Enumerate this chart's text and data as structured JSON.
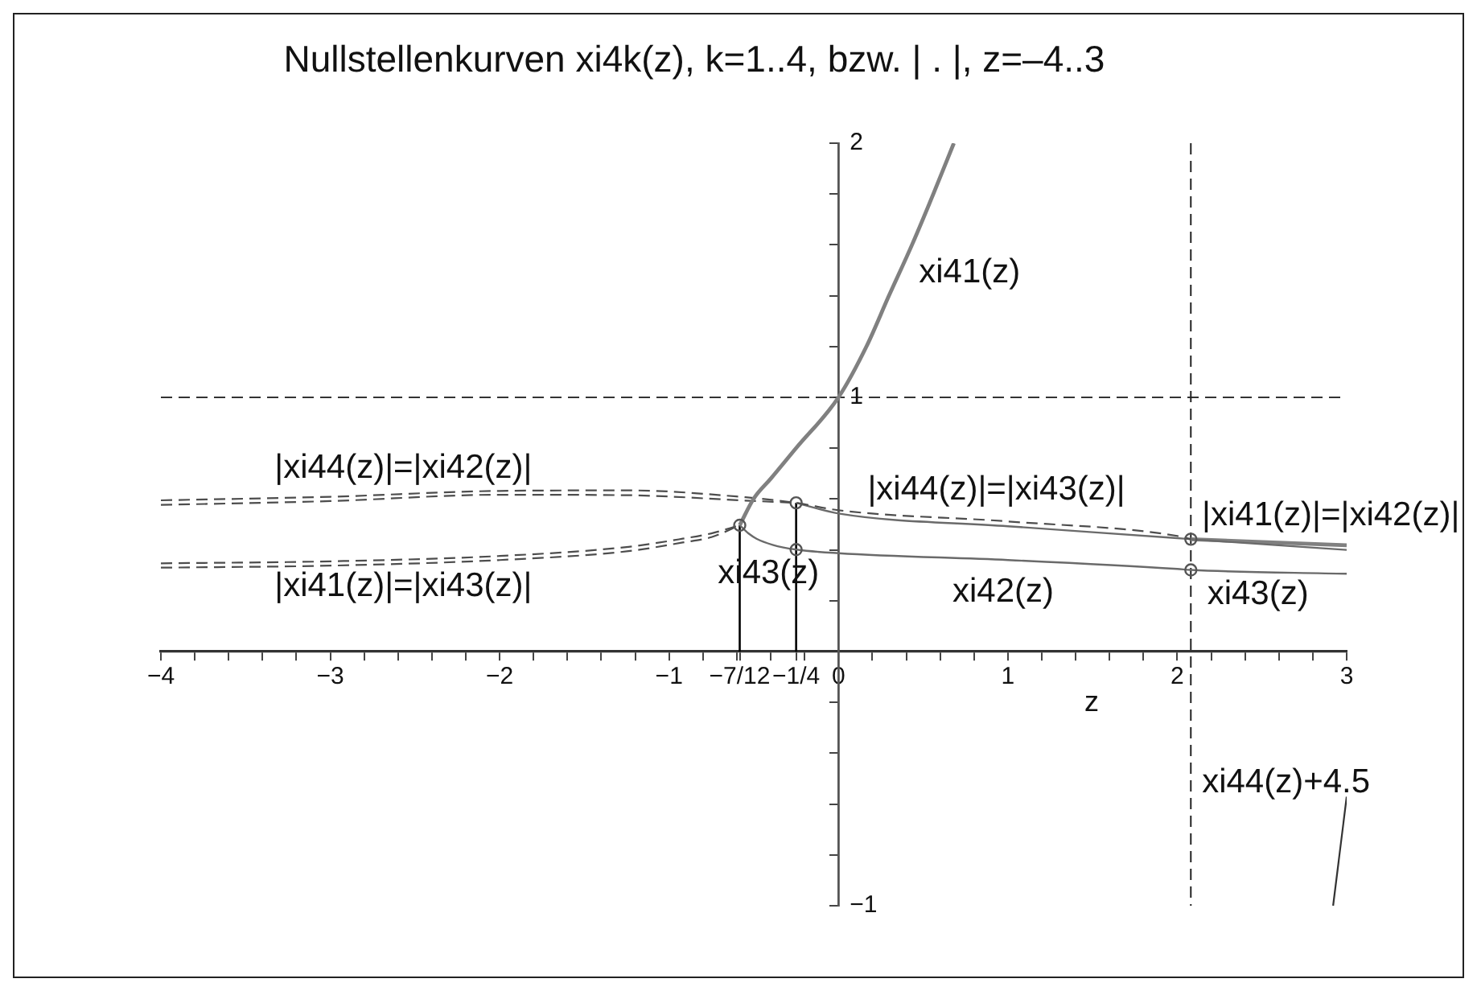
{
  "chart_data": {
    "type": "line",
    "title": "Nullstellenkurven xi4k(z), k=1..4, bzw. | . |, z=–4..3",
    "xlabel": "z",
    "xlim": [
      -4,
      3
    ],
    "ylim": [
      -1,
      2
    ],
    "xticks": [
      {
        "value": -4,
        "label": "−4"
      },
      {
        "value": -3.8,
        "label": null
      },
      {
        "value": -3.6,
        "label": null
      },
      {
        "value": -3.4,
        "label": null
      },
      {
        "value": -3.2,
        "label": null
      },
      {
        "value": -3,
        "label": "−3"
      },
      {
        "value": -2.8,
        "label": null
      },
      {
        "value": -2.6,
        "label": null
      },
      {
        "value": -2.4,
        "label": null
      },
      {
        "value": -2.2,
        "label": null
      },
      {
        "value": -2,
        "label": "−2"
      },
      {
        "value": -1.8,
        "label": null
      },
      {
        "value": -1.6,
        "label": null
      },
      {
        "value": -1.4,
        "label": null
      },
      {
        "value": -1.2,
        "label": null
      },
      {
        "value": -1,
        "label": "−1"
      },
      {
        "value": -0.8,
        "label": null
      },
      {
        "value": -0.6,
        "label": null
      },
      {
        "value": -0.583,
        "label": "−7/12"
      },
      {
        "value": -0.4,
        "label": null
      },
      {
        "value": -0.25,
        "label": "−1/4"
      },
      {
        "value": -0.2,
        "label": null
      },
      0,
      {
        "value": 0.2,
        "label": null
      },
      {
        "value": 0.4,
        "label": null
      },
      {
        "value": 0.6,
        "label": null
      },
      {
        "value": 0.8,
        "label": null
      },
      1,
      {
        "value": 1.2,
        "label": null
      },
      {
        "value": 1.4,
        "label": null
      },
      {
        "value": 1.6,
        "label": null
      },
      {
        "value": 1.8,
        "label": null
      },
      2,
      {
        "value": 2.2,
        "label": null
      },
      {
        "value": 2.4,
        "label": null
      },
      {
        "value": 2.6,
        "label": null
      },
      {
        "value": 2.8,
        "label": null
      },
      3
    ],
    "yticks": [
      {
        "value": -1,
        "label": "−1"
      },
      {
        "value": -0.8,
        "label": null
      },
      {
        "value": -0.6,
        "label": null
      },
      {
        "value": -0.4,
        "label": null
      },
      {
        "value": -0.2,
        "label": null
      },
      {
        "value": 0,
        "label": null
      },
      {
        "value": 0.2,
        "label": null
      },
      {
        "value": 0.4,
        "label": null
      },
      {
        "value": 0.6,
        "label": null
      },
      {
        "value": 0.8,
        "label": null
      },
      1,
      {
        "value": 1.2,
        "label": null
      },
      {
        "value": 1.4,
        "label": null
      },
      {
        "value": 1.6,
        "label": null
      },
      {
        "value": 1.8,
        "label": null
      },
      2
    ],
    "ref_lines": [
      {
        "axis": "y",
        "value": 1,
        "line_style": "dashed",
        "color": "#333333"
      },
      {
        "axis": "x",
        "value": 2.08,
        "line_style": "dashed",
        "color": "#222222"
      }
    ],
    "series": [
      {
        "color": "#808080",
        "x": [
          -0.583,
          -0.5,
          -0.4,
          -0.247,
          0,
          0.165,
          0.298,
          0.434,
          0.56,
          0.681
        ],
        "values": [
          0.497,
          0.602,
          0.68,
          0.803,
          1,
          1.2,
          1.4,
          1.6,
          1.8,
          2
        ]
      },
      {
        "color": "#6a6a6a",
        "x": [
          -0.583,
          -0.532,
          -0.484,
          -0.389,
          -0.247,
          0,
          1,
          2,
          2.08,
          3
        ],
        "values": [
          0.497,
          0.465,
          0.444,
          0.42,
          0.401,
          0.387,
          0.36,
          0.325,
          0.321,
          0.306
        ]
      },
      {
        "color": "#4d4d4d",
        "line_style": "dashed",
        "x": [
          -4,
          -3,
          -2,
          -1.24,
          -0.55,
          -0.25,
          0,
          1,
          2,
          2.08
        ],
        "values": [
          0.595,
          0.609,
          0.632,
          0.634,
          0.607,
          0.585,
          0.556,
          0.512,
          0.455,
          0.442
        ]
      },
      {
        "color": "#4d4d4d",
        "line_style": "dashed",
        "x": [
          -4,
          -3,
          -2,
          -1.24,
          -0.55,
          -0.25
        ],
        "values": [
          0.577,
          0.592,
          0.617,
          0.615,
          0.594,
          0.585
        ]
      },
      {
        "color": "#6a6a6a",
        "x": [
          -0.25,
          0,
          1,
          2,
          2.08,
          3
        ],
        "values": [
          0.585,
          0.543,
          0.493,
          0.446,
          0.442,
          0.4
        ]
      },
      {
        "color": "#808080",
        "x": [
          2.08,
          3
        ],
        "values": [
          0.442,
          0.418
        ]
      },
      {
        "color": "#4d4d4d",
        "line_style": "dashed",
        "x": [
          -4,
          -3,
          -2,
          -1.24,
          -0.92,
          -0.75,
          -0.583
        ],
        "values": [
          0.347,
          0.355,
          0.376,
          0.412,
          0.444,
          0.465,
          0.497
        ]
      },
      {
        "color": "#4d4d4d",
        "line_style": "dashed",
        "x": [
          -4,
          -3,
          -2,
          -1.24,
          -0.92,
          -0.75,
          -0.583
        ],
        "values": [
          0.33,
          0.338,
          0.36,
          0.395,
          0.429,
          0.45,
          0.497
        ]
      },
      {
        "color": "#000000",
        "x": [
          -0.583,
          -0.583
        ],
        "values": [
          0,
          0.497
        ]
      },
      {
        "color": "#000000",
        "x": [
          -0.25,
          -0.25
        ],
        "values": [
          0,
          0.585
        ]
      },
      {
        "color": "#333333",
        "x": [
          2.92,
          3
        ],
        "values": [
          -1,
          -0.571
        ]
      },
      {
        "type": "scatter",
        "color": "#555555",
        "marker": "circle",
        "x": [
          -0.583,
          -0.25,
          -0.25,
          2.08,
          2.08
        ],
        "values": [
          0.497,
          0.585,
          0.401,
          0.442,
          0.321
        ]
      }
    ],
    "annotations": [
      "xi41(z)",
      "|xi44(z)|=|xi42(z)|",
      "|xi41(z)|=|xi43(z)|",
      "|xi44(z)|=|xi43(z)|",
      "|xi41(z)|=|xi42(z)|",
      "xi43(z)",
      "xi42(z)",
      "xi43(z)",
      "xi44(z)+4.5"
    ]
  }
}
